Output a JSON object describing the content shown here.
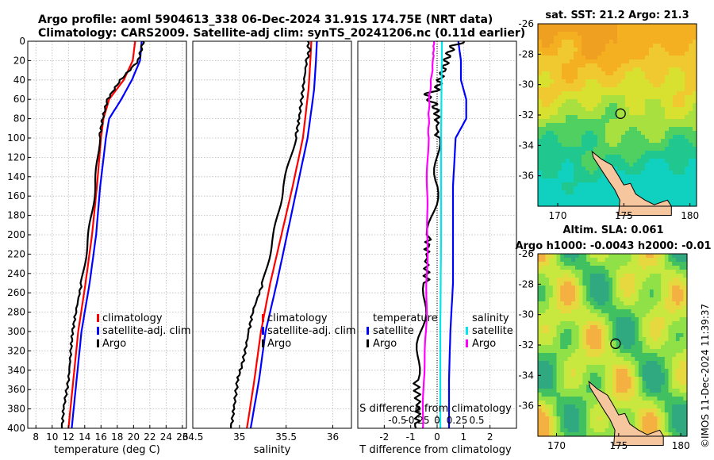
{
  "header": {
    "line1": "Argo profile: aoml 5904613_338 06-Dec-2024 31.91S 174.75E (NRT data)",
    "line2": "Climatology: CARS2009. Satellite-adj clim: synTS_20241206.nc (0.11d earlier)"
  },
  "watermark": "©IMOS 11-Dec-2024 11:39:37",
  "colors": {
    "climatology": "#ff0000",
    "satellite": "#0000ff",
    "argo": "#000000",
    "sat_salinity": "#00e5ee",
    "argo_salinity_diff": "#ff00ff"
  },
  "chart_data": [
    {
      "id": "temperature",
      "type": "line",
      "xlabel": "temperature (deg C)",
      "xlim": [
        7,
        26.5
      ],
      "xticks": [
        8,
        10,
        12,
        14,
        16,
        18,
        20,
        22,
        24,
        26
      ],
      "ylim": [
        400,
        0
      ],
      "yticks": [
        0,
        20,
        40,
        60,
        80,
        100,
        120,
        140,
        160,
        180,
        200,
        220,
        240,
        260,
        280,
        300,
        320,
        340,
        360,
        380,
        400
      ],
      "legend": [
        "climatology",
        "satellite-adj. clim",
        "Argo"
      ],
      "series": [
        {
          "name": "climatology",
          "color": "#ff0000",
          "depth": [
            0,
            20,
            40,
            60,
            80,
            100,
            150,
            200,
            250,
            300,
            350,
            400
          ],
          "values": [
            20.2,
            19.9,
            18.8,
            17.0,
            16.3,
            16.0,
            15.5,
            14.9,
            14.1,
            13.2,
            12.6,
            12.0
          ]
        },
        {
          "name": "satellite-adj. clim",
          "color": "#0000ff",
          "depth": [
            0,
            20,
            40,
            60,
            80,
            100,
            150,
            200,
            250,
            300,
            350,
            400
          ],
          "values": [
            21.0,
            20.8,
            19.8,
            18.5,
            17.0,
            16.6,
            15.9,
            15.4,
            14.6,
            13.6,
            13.0,
            12.4
          ]
        },
        {
          "name": "Argo",
          "color": "#000000",
          "depth": [
            0,
            10,
            20,
            40,
            60,
            80,
            100,
            150,
            200,
            250,
            280,
            300,
            320,
            350,
            380,
            400
          ],
          "values": [
            21.2,
            20.9,
            20.6,
            18.4,
            16.8,
            16.2,
            15.8,
            15.3,
            14.5,
            13.6,
            12.9,
            12.5,
            12.3,
            12.0,
            11.4,
            11.2
          ]
        }
      ]
    },
    {
      "id": "salinity",
      "type": "line",
      "xlabel": "salinity",
      "xlim": [
        34.5,
        36.2
      ],
      "xticks": [
        34.5,
        35,
        35.5,
        36
      ],
      "xticklabels": [
        "34.5",
        "35",
        "35.5",
        "36"
      ],
      "ylim": [
        400,
        0
      ],
      "legend": [
        "climatology",
        "satellite-adj. clim",
        "Argo"
      ],
      "series": [
        {
          "name": "climatology",
          "color": "#ff0000",
          "depth": [
            0,
            20,
            50,
            100,
            150,
            200,
            250,
            300,
            350,
            400
          ],
          "values": [
            35.77,
            35.76,
            35.74,
            35.68,
            35.57,
            35.45,
            35.33,
            35.23,
            35.16,
            35.08
          ]
        },
        {
          "name": "satellite-adj. clim",
          "color": "#0000ff",
          "depth": [
            0,
            20,
            50,
            100,
            150,
            200,
            250,
            300,
            350,
            400
          ],
          "values": [
            35.83,
            35.82,
            35.8,
            35.73,
            35.62,
            35.51,
            35.4,
            35.28,
            35.21,
            35.12
          ]
        },
        {
          "name": "Argo",
          "color": "#000000",
          "depth": [
            0,
            10,
            20,
            50,
            80,
            100,
            150,
            200,
            250,
            280,
            300,
            330,
            350,
            380,
            400
          ],
          "values": [
            35.73,
            35.75,
            35.72,
            35.68,
            35.64,
            35.6,
            35.47,
            35.37,
            35.25,
            35.14,
            35.1,
            35.04,
            34.98,
            34.94,
            34.91
          ]
        }
      ]
    },
    {
      "id": "differences",
      "type": "line",
      "xlabel": "T difference from climatology",
      "xlabel_top": "S difference from climatology",
      "xlim": [
        -3,
        3
      ],
      "xticks": [
        -2,
        -1,
        0,
        1,
        2
      ],
      "xticks_top": [
        -0.5,
        -0.25,
        0,
        0.25,
        0.5
      ],
      "xticklabels_top": [
        "-0.5",
        "-0.25",
        "0",
        "0.25",
        "0.5"
      ],
      "ylim": [
        400,
        0
      ],
      "legend_left_title": "temperature",
      "legend_right_title": "salinity",
      "legend_left": [
        "satellite",
        "Argo"
      ],
      "legend_right": [
        "satellite",
        "Argo"
      ],
      "series": [
        {
          "name": "temperature satellite",
          "color": "#0000ff",
          "depth": [
            0,
            20,
            40,
            60,
            80,
            100,
            150,
            200,
            250,
            300,
            350,
            400
          ],
          "values": [
            0.8,
            0.9,
            0.9,
            1.1,
            1.1,
            0.7,
            0.6,
            0.6,
            0.6,
            0.5,
            0.45,
            0.45
          ]
        },
        {
          "name": "temperature Argo",
          "color": "#000000",
          "depth": [
            0,
            5,
            15,
            25,
            40,
            50,
            55,
            60,
            65,
            75,
            100,
            150,
            200,
            220,
            250,
            300,
            350,
            380,
            400
          ],
          "values": [
            1.0,
            0.6,
            0.4,
            0.3,
            0.1,
            0.0,
            -0.4,
            -0.3,
            -0.1,
            0.0,
            0.0,
            0.0,
            -0.3,
            -0.4,
            -0.4,
            -0.6,
            -0.8,
            -0.7,
            -0.8
          ]
        },
        {
          "name": "salinity satellite",
          "color": "#00e5ee",
          "axis": "top",
          "depth": [
            0,
            100,
            200,
            300,
            400
          ],
          "values": [
            0.06,
            0.05,
            0.05,
            0.04,
            0.04
          ]
        },
        {
          "name": "salinity Argo",
          "color": "#ff00ff",
          "axis": "top",
          "depth": [
            0,
            20,
            60,
            100,
            150,
            200,
            250,
            300,
            350,
            400
          ],
          "values": [
            -0.04,
            -0.05,
            -0.1,
            -0.11,
            -0.13,
            -0.12,
            -0.13,
            -0.14,
            -0.17,
            -0.18
          ]
        }
      ]
    },
    {
      "id": "sst-map",
      "type": "heatmap",
      "title": "sat. SST: 21.2 Argo: 21.3",
      "xlim": [
        168.5,
        180.5
      ],
      "ylim": [
        -38,
        -26
      ],
      "xticks": [
        170,
        175,
        180
      ],
      "yticks": [
        -26,
        -28,
        -30,
        -32,
        -34,
        -36
      ],
      "marker": {
        "lon": 174.75,
        "lat": -31.91
      }
    },
    {
      "id": "sla-map",
      "type": "heatmap",
      "title_line1": "Altim. SLA: 0.061",
      "title_line2": "Argo h1000: -0.0043 h2000: -0.01",
      "xlim": [
        168.5,
        180.5
      ],
      "ylim": [
        -38,
        -26
      ],
      "xticks": [
        170,
        175,
        180
      ],
      "yticks": [
        -26,
        -28,
        -30,
        -32,
        -34,
        -36
      ],
      "marker": {
        "lon": 174.75,
        "lat": -31.91
      }
    }
  ]
}
